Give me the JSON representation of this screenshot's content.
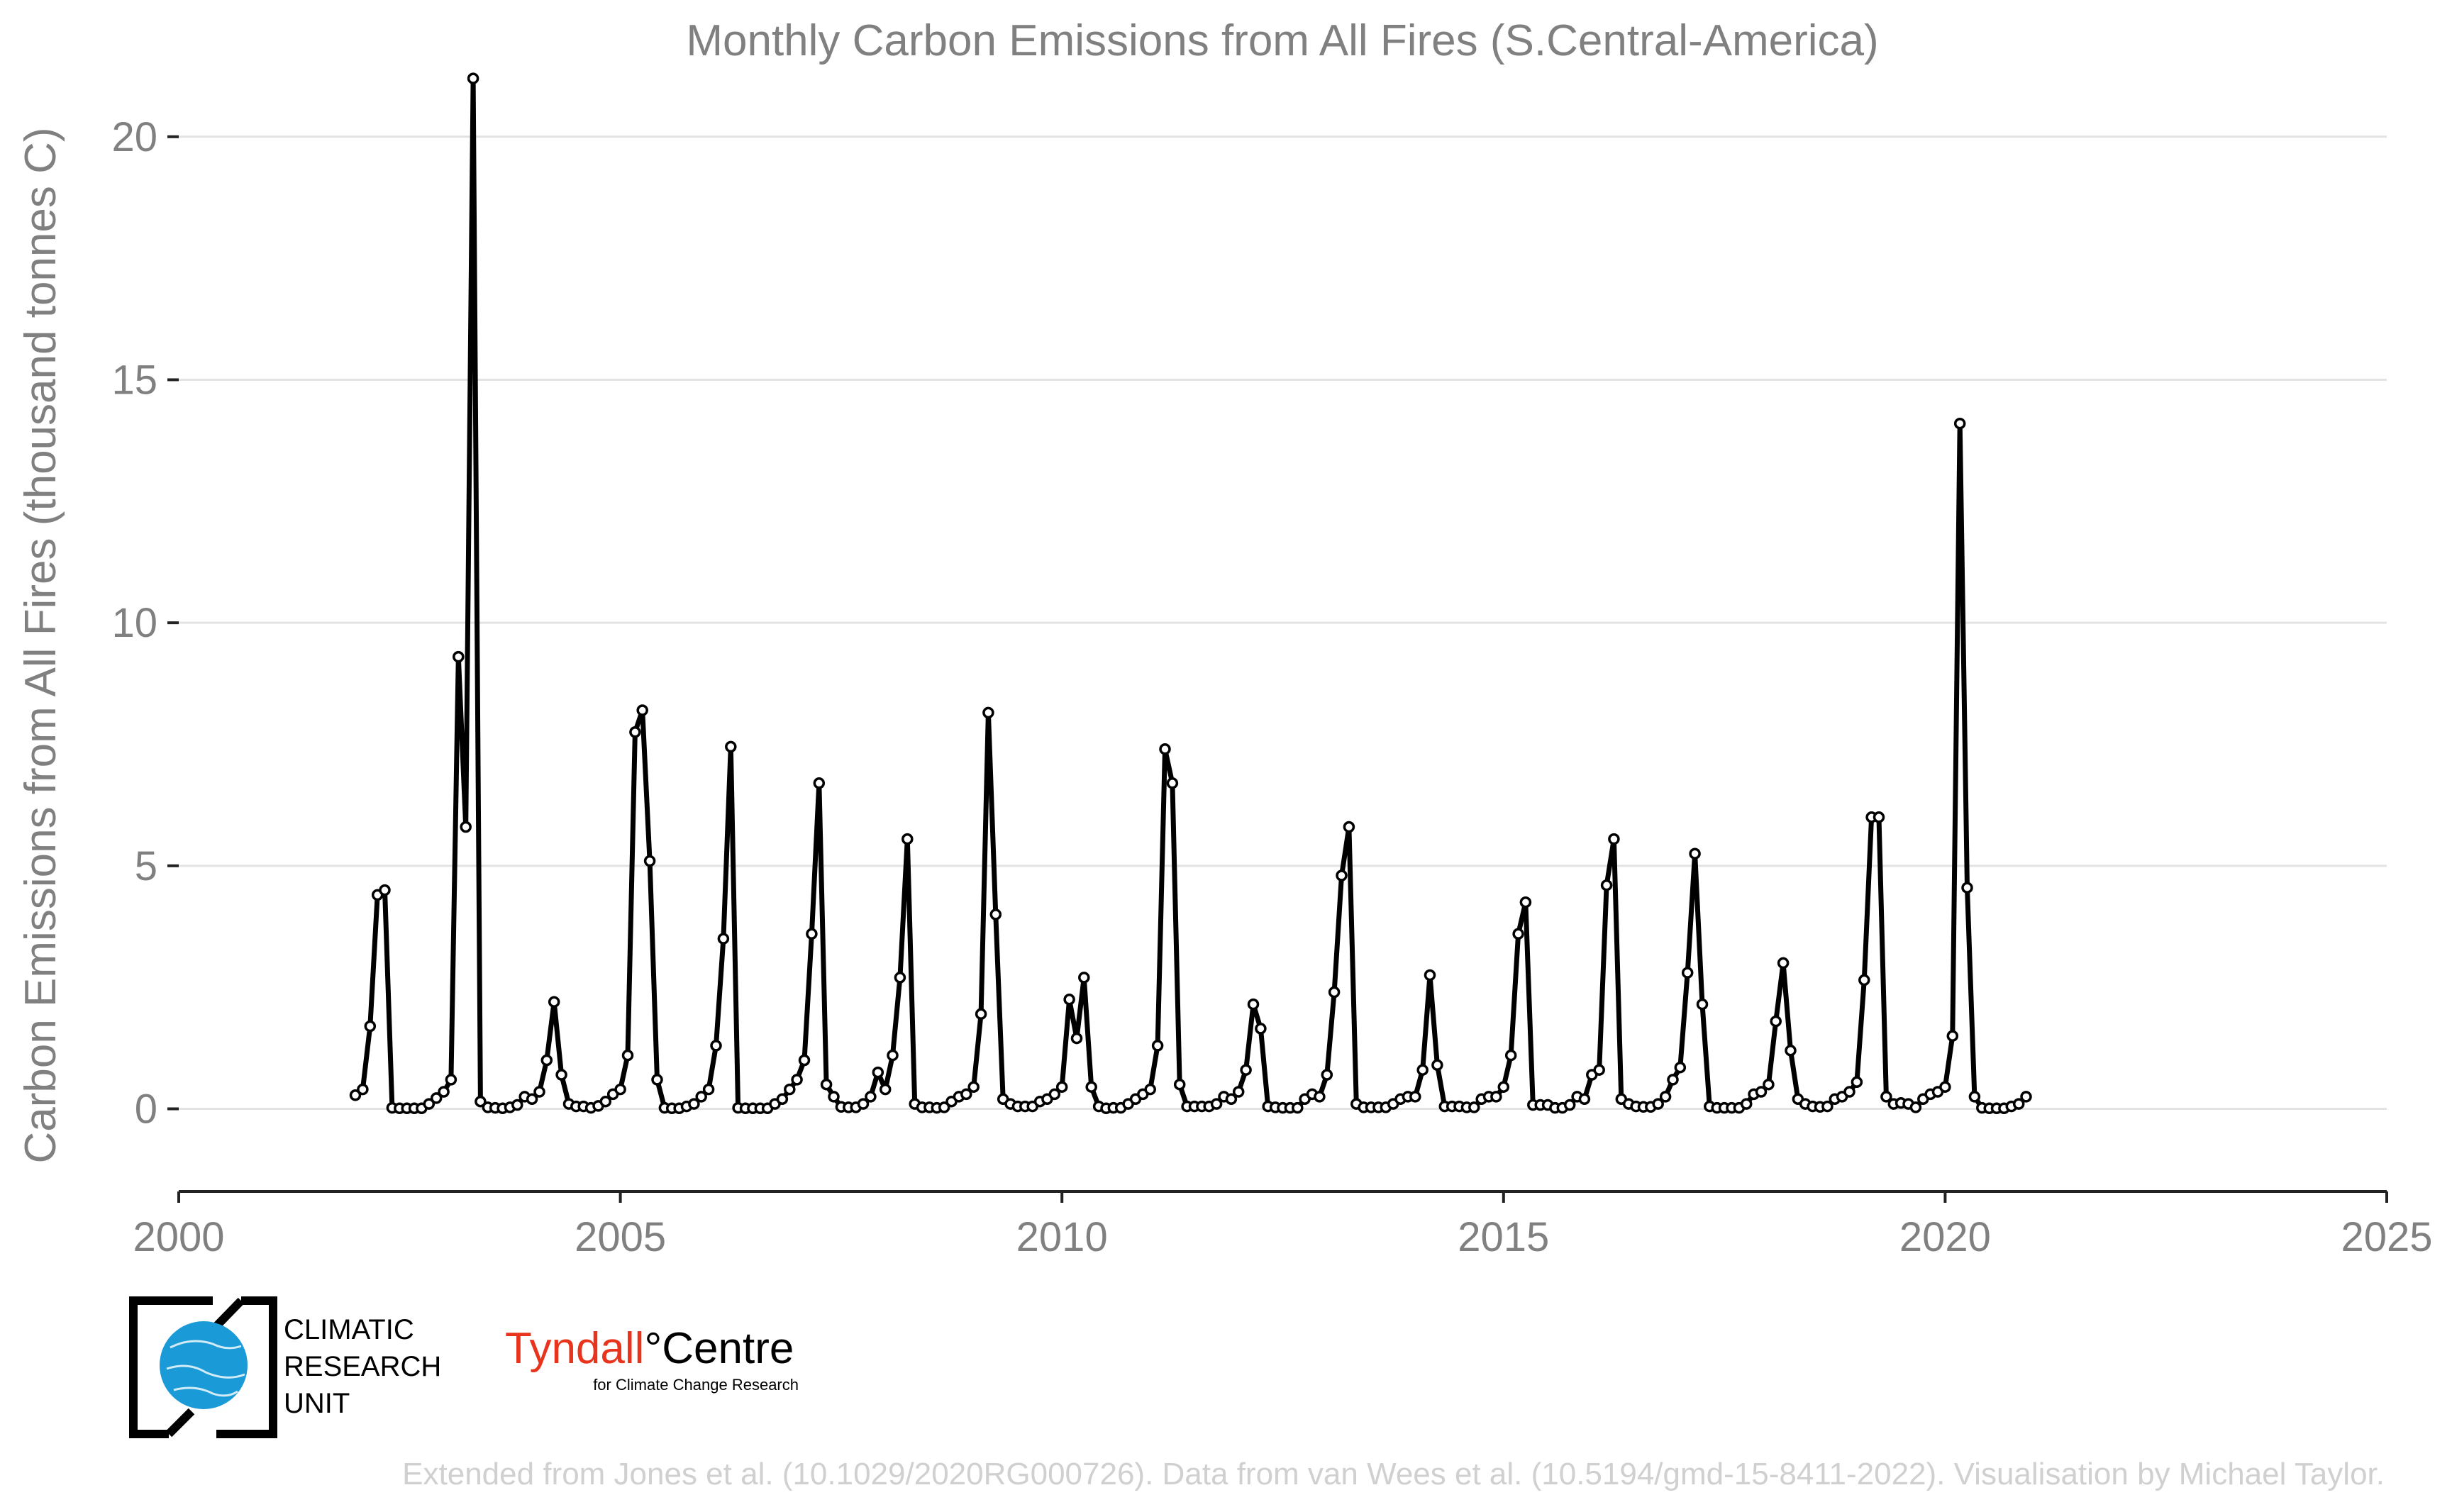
{
  "chart_data": {
    "type": "line",
    "title": "Monthly Carbon Emissions from All Fires (S.Central-America)",
    "ylabel": "Carbon Emissions from All Fires (thousand tonnes C)",
    "xlabel": "",
    "xlim": [
      2000,
      2025
    ],
    "ylim": [
      -1.7,
      21.5
    ],
    "xticks": [
      2000,
      2005,
      2010,
      2015,
      2020,
      2025
    ],
    "yticks": [
      0,
      5,
      10,
      15,
      20
    ],
    "grid": true,
    "legend": "none",
    "line_color": "#000000",
    "marker": "open-circle",
    "series": [
      {
        "start": "2002-01",
        "values": [
          0.28,
          0.4,
          1.7,
          4.4,
          4.5,
          0.02,
          0.01,
          0.01,
          0.01,
          0.01,
          0.1,
          0.22,
          0.35,
          0.6,
          9.3,
          5.8,
          21.2,
          0.15,
          0.03,
          0.02,
          0.01,
          0.03,
          0.08,
          0.25,
          0.2,
          0.35,
          1.0,
          2.2,
          0.7,
          0.1,
          0.05,
          0.05,
          0.02,
          0.06,
          0.15,
          0.3,
          0.4,
          1.1,
          7.75,
          8.2,
          5.1,
          0.6,
          0.02,
          0.01,
          0.01,
          0.05,
          0.1,
          0.25,
          0.4,
          1.3,
          3.5,
          7.45,
          0.02,
          0.01,
          0.01,
          0.01,
          0.01,
          0.1,
          0.2,
          0.4,
          0.6,
          1.0,
          3.6,
          6.7,
          0.5,
          0.25,
          0.04,
          0.03,
          0.03,
          0.1,
          0.25,
          0.75,
          0.4,
          1.1,
          2.7,
          5.55,
          0.1,
          0.03,
          0.03,
          0.02,
          0.03,
          0.15,
          0.25,
          0.3,
          0.45,
          1.95,
          8.15,
          4.0,
          0.2,
          0.1,
          0.05,
          0.05,
          0.05,
          0.15,
          0.2,
          0.3,
          0.45,
          2.25,
          1.45,
          2.7,
          0.45,
          0.05,
          0.01,
          0.02,
          0.02,
          0.1,
          0.2,
          0.3,
          0.4,
          1.3,
          7.4,
          6.7,
          0.5,
          0.05,
          0.05,
          0.05,
          0.05,
          0.1,
          0.25,
          0.2,
          0.35,
          0.8,
          2.15,
          1.65,
          0.05,
          0.03,
          0.02,
          0.02,
          0.02,
          0.2,
          0.3,
          0.25,
          0.7,
          2.4,
          4.8,
          5.8,
          0.1,
          0.03,
          0.03,
          0.03,
          0.03,
          0.1,
          0.2,
          0.25,
          0.25,
          0.8,
          2.75,
          0.9,
          0.05,
          0.05,
          0.05,
          0.03,
          0.03,
          0.2,
          0.25,
          0.25,
          0.45,
          1.1,
          3.6,
          4.25,
          0.08,
          0.08,
          0.08,
          0.02,
          0.02,
          0.08,
          0.25,
          0.2,
          0.7,
          0.8,
          4.6,
          5.55,
          0.2,
          0.1,
          0.05,
          0.04,
          0.04,
          0.1,
          0.25,
          0.6,
          0.85,
          2.8,
          5.25,
          2.15,
          0.05,
          0.02,
          0.02,
          0.02,
          0.02,
          0.1,
          0.3,
          0.35,
          0.5,
          1.8,
          3.0,
          1.2,
          0.2,
          0.1,
          0.05,
          0.04,
          0.05,
          0.2,
          0.25,
          0.35,
          0.55,
          2.65,
          6.0,
          6.0,
          0.25,
          0.1,
          0.12,
          0.1,
          0.03,
          0.2,
          0.3,
          0.35,
          0.45,
          1.5,
          14.1,
          4.55,
          0.25,
          0.02,
          0.01,
          0.01,
          0.01,
          0.05,
          0.1,
          0.25
        ]
      }
    ]
  },
  "logos": {
    "cru_lines": [
      "CLIMATIC",
      "RESEARCH",
      "UNIT"
    ],
    "cru_color": "#1a9ad6",
    "tyndall_red": "Tyndall",
    "tyndall_black": "Centre",
    "tyndall_degree": "°",
    "tyndall_red_color": "#e8341c",
    "tyndall_sub": "for Climate Change Research"
  },
  "caption": "Extended from Jones et al. (10.1029/2020RG000726). Data from van Wees et al. (10.5194/gmd-15-8411-2022). Visualisation by Michael Taylor."
}
